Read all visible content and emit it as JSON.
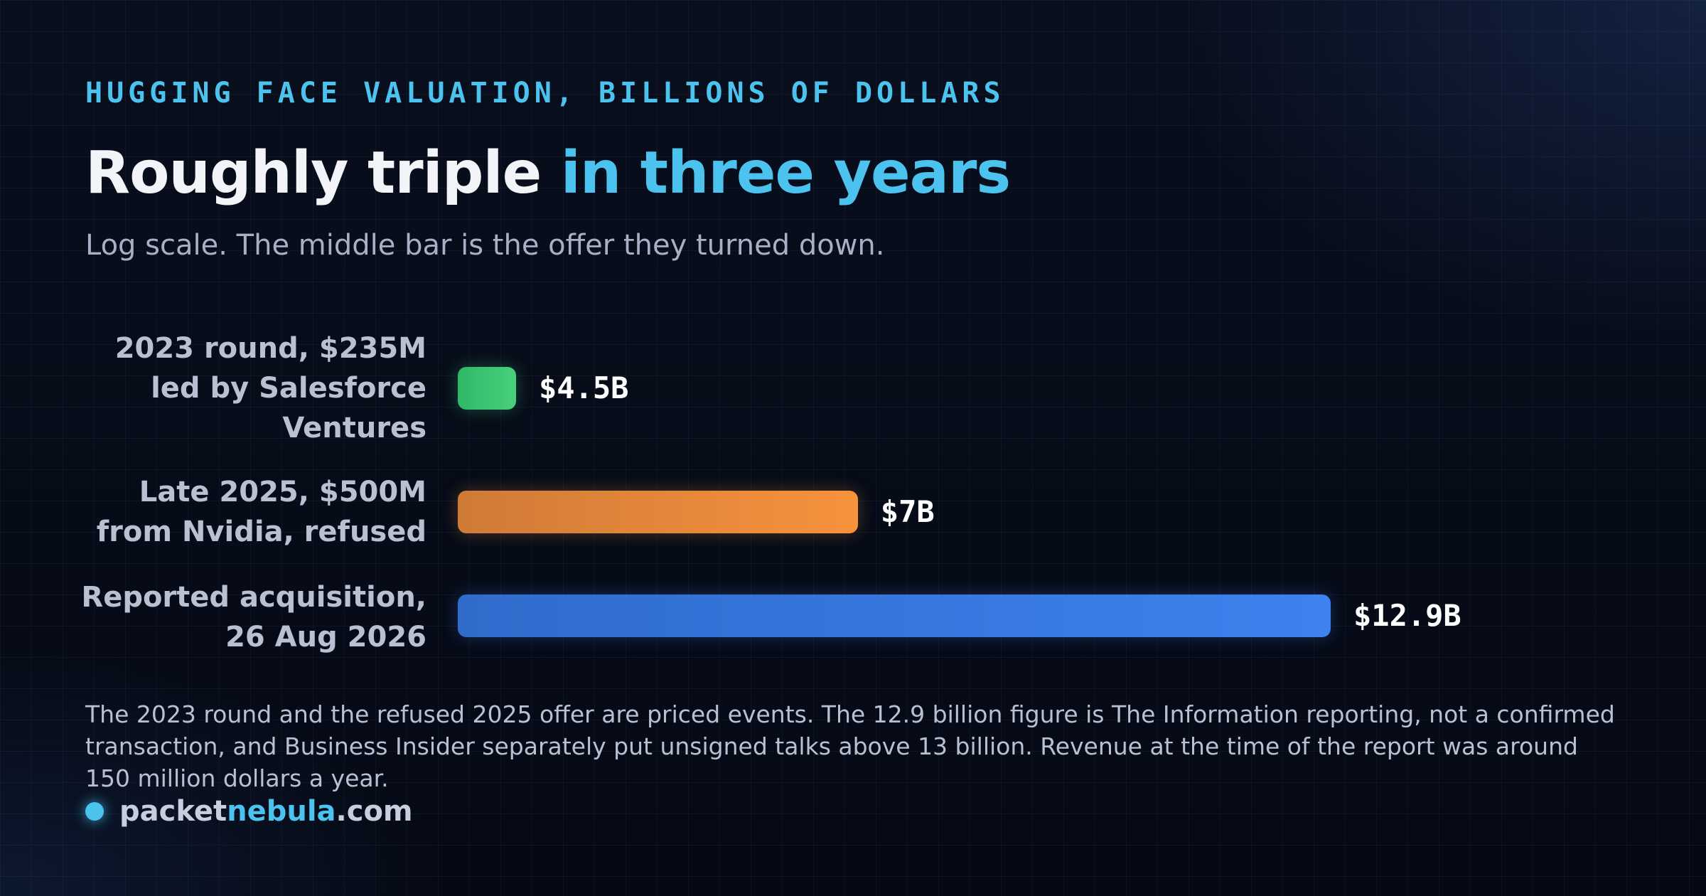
{
  "kicker": "HUGGING FACE VALUATION, BILLIONS OF DOLLARS",
  "title_main": "Roughly triple ",
  "title_accent": "in three years",
  "subtitle": "Log scale. The middle bar is the offer they turned down.",
  "chart_data": {
    "type": "bar",
    "orientation": "horizontal",
    "scale": "log",
    "unit": "billions of dollars",
    "categories": [
      "2023 round, $235M led by Salesforce Ventures",
      "Late 2025, $500M from Nvidia, refused",
      "Reported acquisition, 26 Aug 2026"
    ],
    "values": [
      4.5,
      7,
      12.9
    ],
    "value_labels": [
      "$4.5B",
      "$7B",
      "$12.9B"
    ],
    "colors": [
      "#3cc472",
      "#f08a3c",
      "#3a7ae0"
    ]
  },
  "footnote": "The 2023 round and the refused 2025 offer are priced events. The 12.9 billion figure is The Information reporting, not a confirmed transaction, and Business Insider separately put unsigned talks above 13 billion. Revenue at the time of the report was around 150 million dollars a year.",
  "brand": {
    "part1": "packet",
    "part2": "nebula",
    "part3": ".com"
  }
}
